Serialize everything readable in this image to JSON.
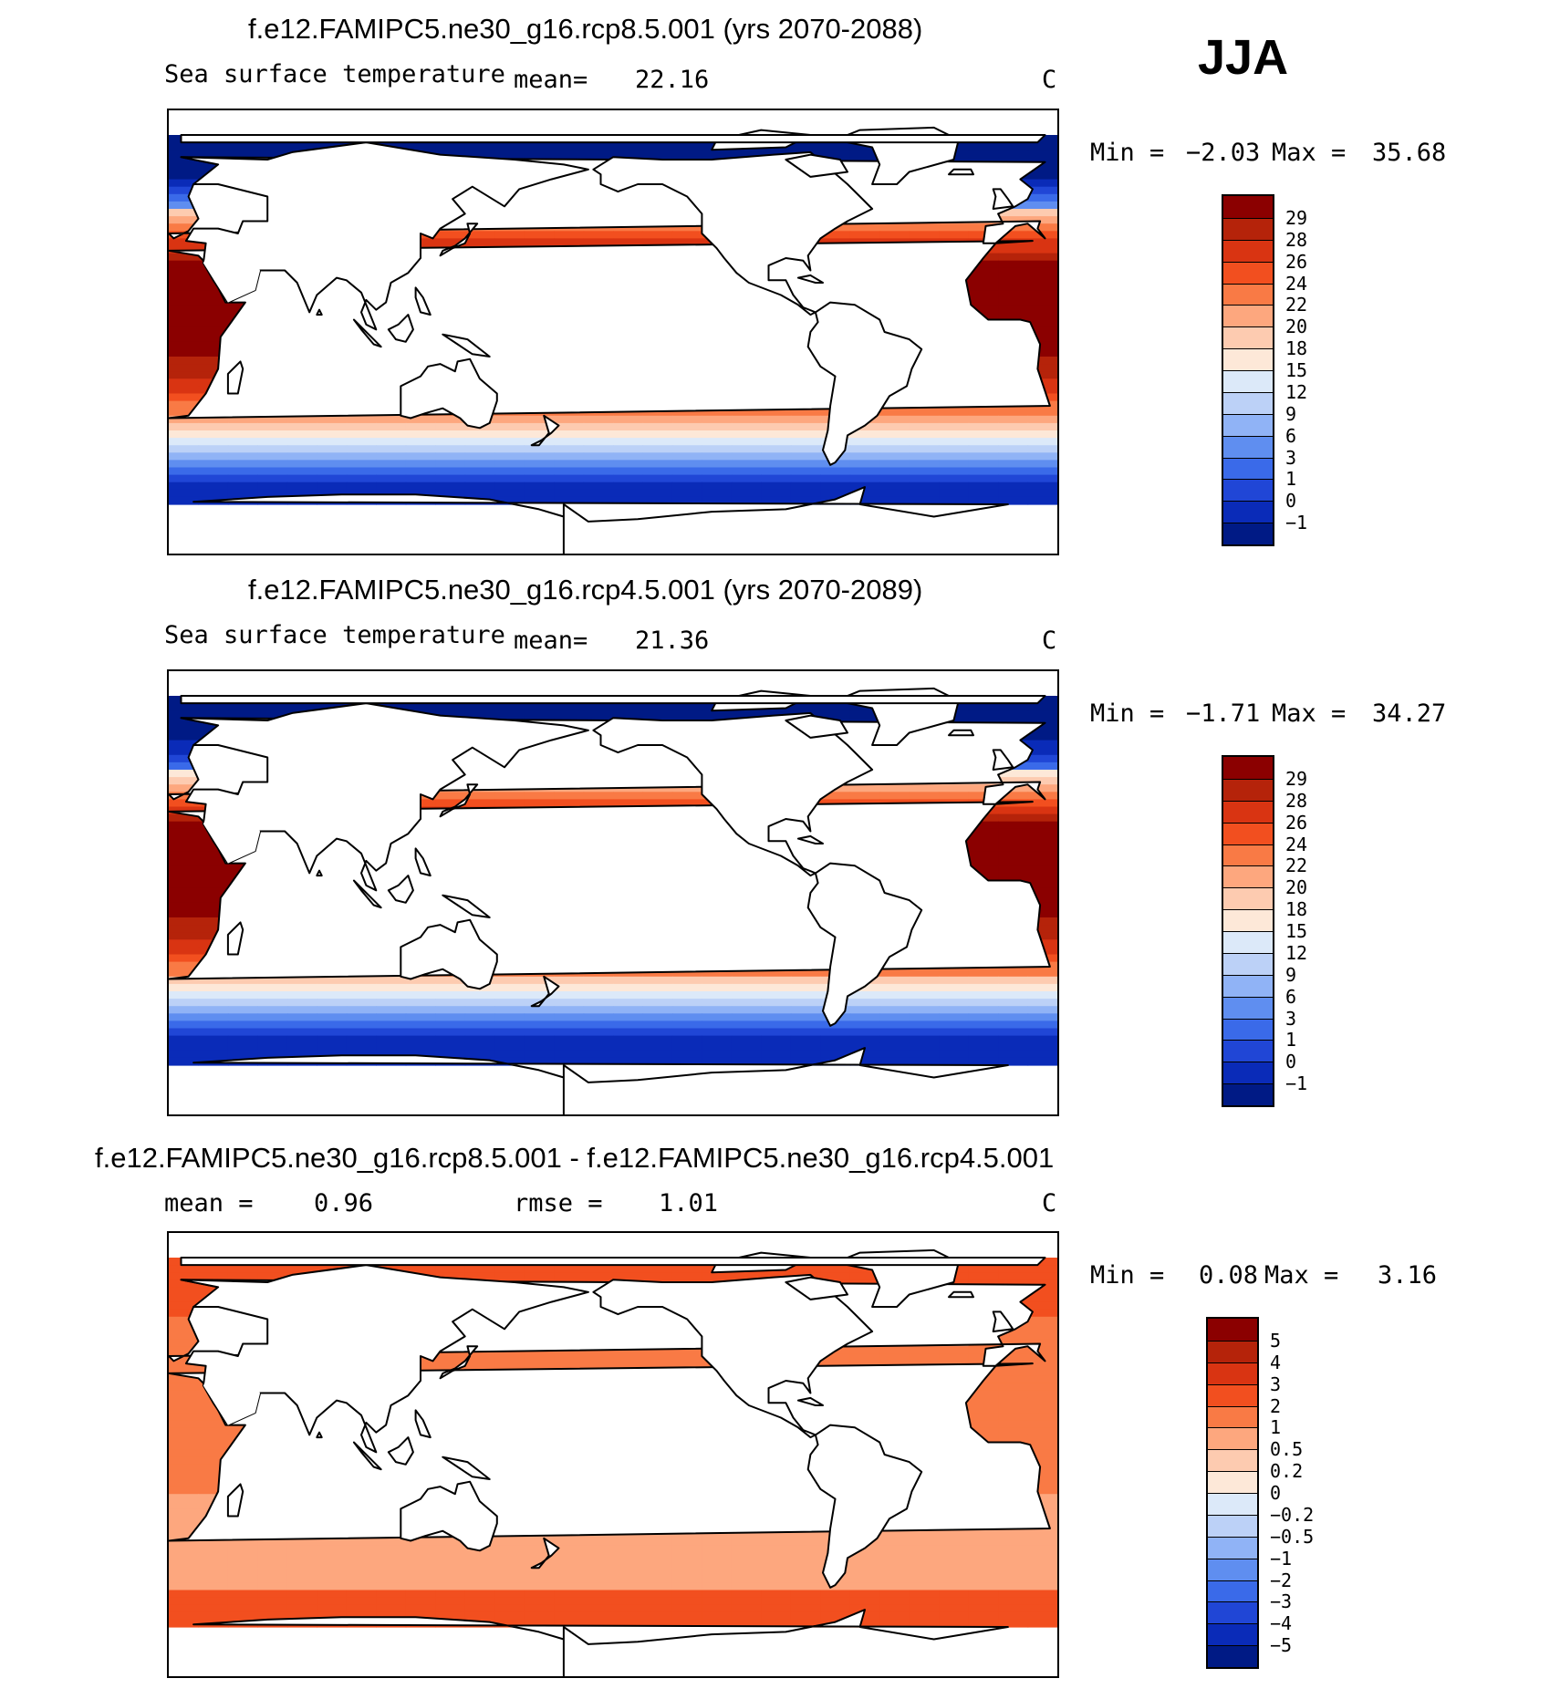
{
  "season": "JJA",
  "chart_data": [
    {
      "type": "heatmap",
      "title": "f.e12.FAMIPC5.ne30_g16.rcp8.5.001 (yrs 2070-2088)",
      "variable": "Sea surface temperature",
      "mean_label": "mean=",
      "mean": "22.16",
      "units": "C",
      "min_label": "Min =",
      "min": "−2.03",
      "max_label": "Max =",
      "max": "35.68",
      "colorbar_levels": [
        "29",
        "28",
        "26",
        "24",
        "22",
        "20",
        "18",
        "15",
        "12",
        "9",
        "6",
        "3",
        "1",
        "0",
        "−1"
      ],
      "colorbar_colors": [
        "#8b0000",
        "#b5230a",
        "#d93412",
        "#f24f1f",
        "#f97a45",
        "#fda77e",
        "#fdcbb0",
        "#fde8d8",
        "#dce9f9",
        "#bcd1f7",
        "#90b3f6",
        "#5f8ef0",
        "#3a6ae9",
        "#2046d6",
        "#0a2bb8",
        "#001a85"
      ]
    },
    {
      "type": "heatmap",
      "title": "f.e12.FAMIPC5.ne30_g16.rcp4.5.001 (yrs 2070-2089)",
      "variable": "Sea surface temperature",
      "mean_label": "mean=",
      "mean": "21.36",
      "units": "C",
      "min_label": "Min =",
      "min": "−1.71",
      "max_label": "Max =",
      "max": "34.27",
      "colorbar_levels": [
        "29",
        "28",
        "26",
        "24",
        "22",
        "20",
        "18",
        "15",
        "12",
        "9",
        "6",
        "3",
        "1",
        "0",
        "−1"
      ],
      "colorbar_colors": [
        "#8b0000",
        "#b5230a",
        "#d93412",
        "#f24f1f",
        "#f97a45",
        "#fda77e",
        "#fdcbb0",
        "#fde8d8",
        "#dce9f9",
        "#bcd1f7",
        "#90b3f6",
        "#5f8ef0",
        "#3a6ae9",
        "#2046d6",
        "#0a2bb8",
        "#001a85"
      ]
    },
    {
      "type": "heatmap",
      "title": "f.e12.FAMIPC5.ne30_g16.rcp8.5.001 - f.e12.FAMIPC5.ne30_g16.rcp4.5.001",
      "mean_label": "mean =",
      "mean": "0.96",
      "rmse_label": "rmse =",
      "rmse": "1.01",
      "units": "C",
      "min_label": "Min =",
      "min": "0.08",
      "max_label": "Max =",
      "max": "3.16",
      "colorbar_levels": [
        "5",
        "4",
        "3",
        "2",
        "1",
        "0.5",
        "0.2",
        "0",
        "−0.2",
        "−0.5",
        "−1",
        "−2",
        "−3",
        "−4",
        "−5"
      ],
      "colorbar_colors": [
        "#8b0000",
        "#b5230a",
        "#d93412",
        "#f24f1f",
        "#f97a45",
        "#fda77e",
        "#fdcbb0",
        "#fde8d8",
        "#dce9f9",
        "#bcd1f7",
        "#90b3f6",
        "#5f8ef0",
        "#3a6ae9",
        "#2046d6",
        "#0a2bb8",
        "#001a85"
      ]
    }
  ]
}
